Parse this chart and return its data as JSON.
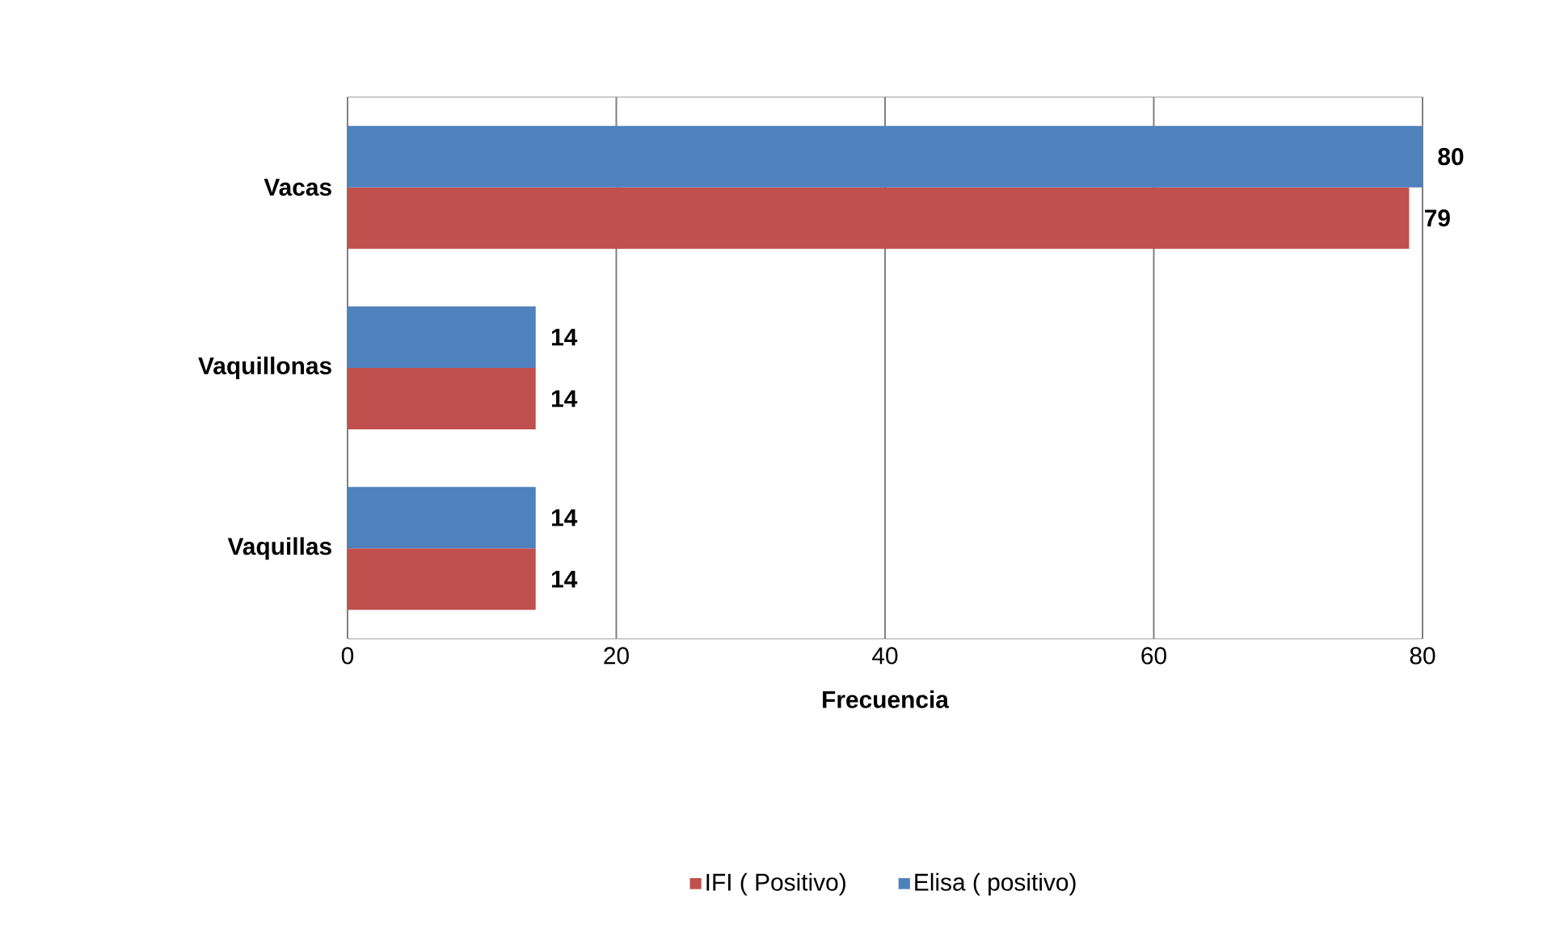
{
  "chart_data": {
    "type": "bar",
    "orientation": "horizontal",
    "xlabel": "Frecuencia",
    "categories": [
      "Vacas",
      "Vaquillonas",
      "Vaquillas"
    ],
    "series": [
      {
        "name": "IFI ( Positivo)",
        "color": "#c0504d",
        "values": [
          79,
          14,
          14
        ]
      },
      {
        "name": "Elisa ( positivo)",
        "color": "#4f81bd",
        "values": [
          80,
          14,
          14
        ]
      }
    ],
    "xlim": [
      0,
      80
    ],
    "xticks": [
      0,
      20,
      40,
      60,
      80
    ],
    "grid": "x",
    "legend": "bottom",
    "data_labels": true
  }
}
